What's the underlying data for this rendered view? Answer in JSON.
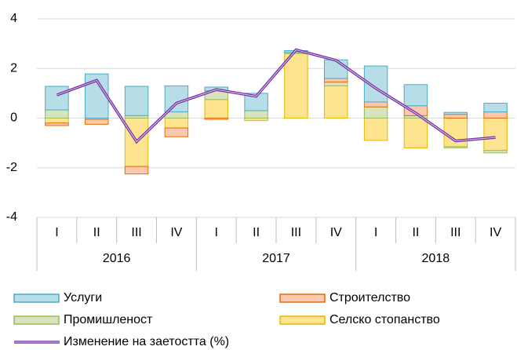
{
  "chart_data": {
    "type": "bar",
    "stacked": true,
    "groups": [
      {
        "label": "2016",
        "categories": [
          "I",
          "II",
          "III",
          "IV"
        ]
      },
      {
        "label": "2017",
        "categories": [
          "I",
          "II",
          "III",
          "IV"
        ]
      },
      {
        "label": "2018",
        "categories": [
          "I",
          "II",
          "III",
          "IV"
        ]
      }
    ],
    "series": [
      {
        "name": "Услуги",
        "color": "#b7dde8",
        "border": "#4bacc6",
        "values": [
          0.95,
          1.78,
          1.18,
          1.05,
          0.15,
          0.7,
          0.07,
          0.75,
          1.45,
          0.85,
          0.08,
          0.35
        ]
      },
      {
        "name": "Строителство",
        "color": "#fac8ae",
        "border": "#e46c0a",
        "values": [
          -0.1,
          -0.2,
          -0.3,
          -0.35,
          -0.05,
          0,
          0,
          0.15,
          0.2,
          0.4,
          0.15,
          0.25
        ]
      },
      {
        "name": "Промишленост",
        "color": "#d7e4bd",
        "border": "#9bbb59",
        "values": [
          0.33,
          0,
          0.1,
          0.25,
          0.35,
          0.3,
          0.05,
          0.15,
          0.45,
          0.1,
          -0.05,
          -0.1
        ]
      },
      {
        "name": "Селско стопанство",
        "color": "#ffe48f",
        "border": "#e6b800",
        "values": [
          -0.2,
          -0.05,
          -1.95,
          -0.4,
          0.75,
          -0.1,
          2.6,
          1.3,
          -0.9,
          -1.2,
          -1.15,
          -1.3
        ]
      },
      {
        "name": "Изменение на заетостта (%)",
        "type": "line",
        "color": "#7030a0",
        "values": [
          0.93,
          1.52,
          -0.95,
          0.6,
          1.15,
          0.88,
          2.75,
          2.33,
          1.2,
          0.2,
          -0.92,
          -0.78
        ]
      }
    ],
    "ylim": [
      -4,
      4
    ],
    "yticks": [
      -4,
      -2,
      0,
      2,
      4
    ],
    "grid": true
  }
}
